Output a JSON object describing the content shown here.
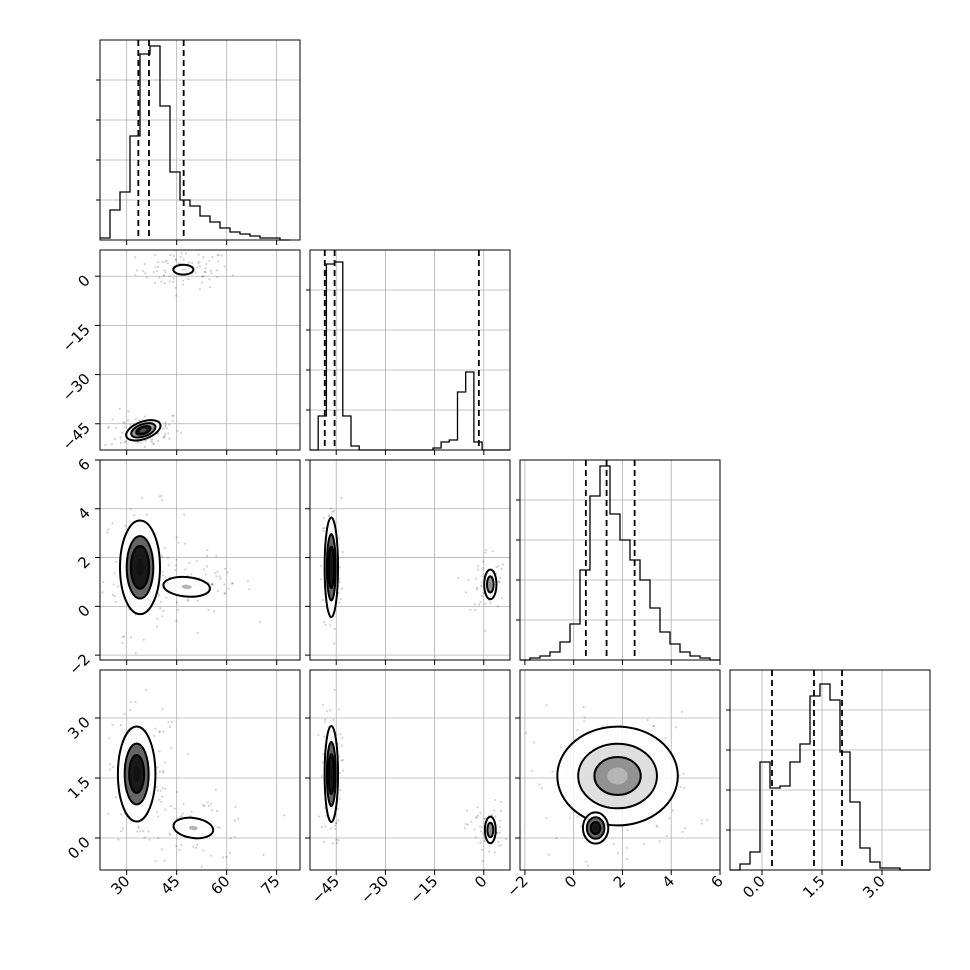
{
  "chart_data": {
    "type": "corner",
    "grid": true,
    "parameters": [
      {
        "range": [
          22,
          82
        ],
        "ticks": [
          30,
          45,
          60,
          75
        ],
        "tick_labels": [
          "30",
          "45",
          "60",
          "75"
        ],
        "histogram": {
          "edges_start": 22,
          "bin_width": 3,
          "counts": [
            0.01,
            0.15,
            0.24,
            0.52,
            0.93,
            0.97,
            0.67,
            0.34,
            0.2,
            0.17,
            0.12,
            0.09,
            0.06,
            0.04,
            0.03,
            0.02,
            0.01,
            0.01,
            0.0
          ]
        },
        "quantiles": [
          33.5,
          36.7,
          47.1
        ]
      },
      {
        "range": [
          -53,
          8
        ],
        "ticks": [
          -45,
          -30,
          -15,
          0
        ],
        "tick_labels": [
          "−45",
          "−30",
          "−15",
          "0"
        ],
        "histogram": {
          "edges_start": -53,
          "bin_width": 2.5,
          "counts": [
            0.0,
            0.17,
            0.93,
            0.94,
            0.17,
            0.02,
            0.0,
            0.0,
            0.0,
            0.0,
            0.0,
            0.0,
            0.0,
            0.0,
            0.0,
            0.01,
            0.04,
            0.05,
            0.29,
            0.39,
            0.04,
            0.0,
            0.0,
            0.0,
            0.0
          ]
        },
        "quantiles": [
          -48.5,
          -45.5,
          -1.5
        ]
      },
      {
        "range": [
          -2.2,
          6
        ],
        "ticks": [
          -2,
          0,
          2,
          4,
          6
        ],
        "tick_labels": [
          "−2",
          "0",
          "2",
          "4",
          "6"
        ],
        "histogram": {
          "edges_start": -2.2,
          "bin_width": 0.41,
          "counts": [
            0.0,
            0.01,
            0.02,
            0.04,
            0.09,
            0.18,
            0.45,
            0.82,
            0.97,
            0.73,
            0.6,
            0.5,
            0.4,
            0.26,
            0.14,
            0.08,
            0.04,
            0.02,
            0.01,
            0.0
          ]
        },
        "quantiles": [
          0.5,
          1.35,
          2.5
        ]
      },
      {
        "range": [
          -0.8,
          4.2
        ],
        "ticks": [
          0,
          1.5,
          3
        ],
        "tick_labels": [
          "0.0",
          "1.5",
          "3.0"
        ],
        "histogram": {
          "edges_start": -0.8,
          "bin_width": 0.25,
          "counts": [
            0.0,
            0.03,
            0.09,
            0.54,
            0.41,
            0.42,
            0.54,
            0.63,
            0.87,
            0.93,
            0.85,
            0.59,
            0.34,
            0.11,
            0.04,
            0.01,
            0.01,
            0.0,
            0.0,
            0.0
          ]
        },
        "quantiles": [
          0.25,
          1.3,
          2.0
        ]
      }
    ],
    "pairs": [
      {
        "x": 0,
        "y": 1,
        "modes": [
          {
            "cx": 47,
            "cy": 2,
            "sx": 3.0,
            "sy": 1.5,
            "rot": 0,
            "level": 1,
            "rings": [
              1.0
            ]
          },
          {
            "cx": 35,
            "cy": -47,
            "sx": 4.5,
            "sy": 2.2,
            "rot": -20,
            "level": 4,
            "rings": [
              0.5,
              0.85,
              1.2
            ]
          }
        ],
        "scatter_blobs": [
          {
            "cx": 47,
            "cy": 2,
            "sx": 7,
            "sy": 3,
            "n": 90
          },
          {
            "cx": 35,
            "cy": -47,
            "sx": 6,
            "sy": 3,
            "n": 90
          }
        ]
      },
      {
        "x": 0,
        "y": 2,
        "modes": [
          {
            "cx": 34,
            "cy": 1.6,
            "sx": 5,
            "sy": 1.6,
            "rot": 0,
            "level": 5,
            "rings": [
              0.55,
              0.8,
              1.2
            ]
          },
          {
            "cx": 48,
            "cy": 0.8,
            "sx": 7,
            "sy": 0.4,
            "rot": 5,
            "level": 2,
            "rings": [
              1.0
            ]
          }
        ],
        "scatter_blobs": [
          {
            "cx": 35,
            "cy": 1.5,
            "sx": 6,
            "sy": 1.3,
            "n": 120
          },
          {
            "cx": 52,
            "cy": 0.9,
            "sx": 8,
            "sy": 0.6,
            "n": 60
          }
        ]
      },
      {
        "x": 0,
        "y": 3,
        "modes": [
          {
            "cx": 33,
            "cy": 1.6,
            "sx": 4.5,
            "sy": 0.95,
            "rot": 0,
            "level": 5,
            "rings": [
              0.5,
              0.8,
              1.25
            ]
          },
          {
            "cx": 50,
            "cy": 0.25,
            "sx": 6,
            "sy": 0.25,
            "rot": 8,
            "level": 2,
            "rings": [
              1.0
            ]
          }
        ],
        "scatter_blobs": [
          {
            "cx": 34,
            "cy": 1.5,
            "sx": 6,
            "sy": 0.9,
            "n": 120
          },
          {
            "cx": 52,
            "cy": 0.25,
            "sx": 8,
            "sy": 0.4,
            "n": 60
          }
        ]
      },
      {
        "x": 1,
        "y": 2,
        "modes": [
          {
            "cx": -46.5,
            "cy": 1.6,
            "sx": 1.7,
            "sy": 1.7,
            "rot": 0,
            "level": 5,
            "rings": [
              0.5,
              0.8,
              1.2
            ]
          },
          {
            "cx": 2,
            "cy": 0.9,
            "sx": 1.7,
            "sy": 0.55,
            "rot": 0,
            "level": 3,
            "rings": [
              0.6,
              1.1
            ]
          }
        ],
        "scatter_blobs": [
          {
            "cx": -46.5,
            "cy": 1.6,
            "sx": 1.5,
            "sy": 1.4,
            "n": 110
          },
          {
            "cx": 1,
            "cy": 1.0,
            "sx": 3,
            "sy": 0.7,
            "n": 55
          }
        ]
      },
      {
        "x": 1,
        "y": 3,
        "modes": [
          {
            "cx": -46.5,
            "cy": 1.6,
            "sx": 1.7,
            "sy": 1.0,
            "rot": 0,
            "level": 5,
            "rings": [
              0.5,
              0.8,
              1.2
            ]
          },
          {
            "cx": 2,
            "cy": 0.2,
            "sx": 1.5,
            "sy": 0.3,
            "rot": 0,
            "level": 3,
            "rings": [
              0.6,
              1.1
            ]
          }
        ],
        "scatter_blobs": [
          {
            "cx": -46.5,
            "cy": 1.6,
            "sx": 1.5,
            "sy": 0.9,
            "n": 110
          },
          {
            "cx": 1,
            "cy": 0.2,
            "sx": 3,
            "sy": 0.35,
            "n": 55
          }
        ]
      },
      {
        "x": 2,
        "y": 3,
        "modes": [
          {
            "cx": 1.8,
            "cy": 1.55,
            "sx": 1.9,
            "sy": 0.95,
            "rot": 0,
            "level": 2,
            "rings": [
              0.5,
              0.85,
              1.3
            ]
          },
          {
            "cx": 0.9,
            "cy": 0.25,
            "sx": 0.4,
            "sy": 0.3,
            "rot": 0,
            "level": 5,
            "rings": [
              0.5,
              0.9,
              1.3
            ]
          }
        ],
        "scatter_blobs": [
          {
            "cx": 1.6,
            "cy": 1.3,
            "sx": 1.7,
            "sy": 0.9,
            "n": 160
          }
        ]
      }
    ]
  }
}
